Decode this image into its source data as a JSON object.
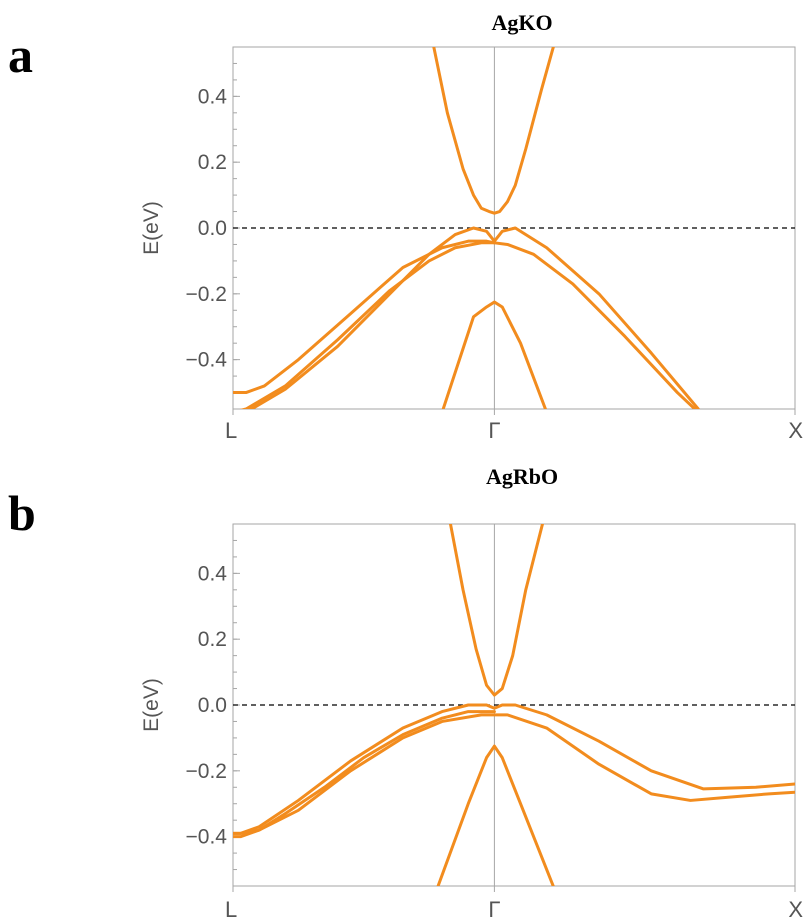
{
  "chart_data": [
    {
      "type": "line",
      "panel_label": "a",
      "title": "AgKO",
      "xlabel": "",
      "ylabel": "E(eV)",
      "ylim": [
        -0.55,
        0.55
      ],
      "yticks": [
        0.4,
        0.2,
        0.0,
        -0.2,
        -0.4
      ],
      "ytick_labels": [
        "0.4",
        "0.2",
        "0.0",
        "−0.2",
        "−0.4"
      ],
      "k_points": [
        {
          "label": "L",
          "k": 0
        },
        {
          "label": "Γ",
          "k": 1
        },
        {
          "label": "X",
          "k": 2.15
        }
      ],
      "fermi_level": 0.0,
      "line_color": "#f28c1e",
      "series": [
        {
          "x": [
            0.75,
            0.82,
            0.88,
            0.92,
            0.95,
            0.98,
            1.0,
            1.02,
            1.05,
            1.08,
            1.12,
            1.18,
            1.25
          ],
          "values": [
            0.62,
            0.35,
            0.18,
            0.1,
            0.06,
            0.05,
            0.045,
            0.05,
            0.08,
            0.13,
            0.24,
            0.42,
            0.62
          ]
        },
        {
          "x": [
            0.0,
            0.05,
            0.2,
            0.4,
            0.6,
            0.75,
            0.85,
            0.92,
            0.97,
            1.0,
            1.03,
            1.08,
            1.2,
            1.4,
            1.6,
            1.78
          ],
          "values": [
            -0.57,
            -0.56,
            -0.49,
            -0.36,
            -0.2,
            -0.08,
            -0.02,
            0.0,
            -0.01,
            -0.04,
            -0.01,
            0.0,
            -0.06,
            -0.2,
            -0.38,
            -0.55
          ]
        },
        {
          "x": [
            0.0,
            0.05,
            0.2,
            0.4,
            0.6,
            0.75,
            0.85,
            0.95,
            1.0,
            1.05,
            1.15,
            1.3,
            1.5,
            1.7,
            1.78
          ],
          "values": [
            -0.56,
            -0.55,
            -0.48,
            -0.34,
            -0.19,
            -0.1,
            -0.06,
            -0.045,
            -0.045,
            -0.05,
            -0.08,
            -0.17,
            -0.33,
            -0.5,
            -0.56
          ]
        },
        {
          "x": [
            0.0,
            0.05,
            0.12,
            0.25,
            0.45,
            0.65,
            0.8,
            0.9,
            0.97,
            1.0
          ],
          "values": [
            -0.5,
            -0.5,
            -0.48,
            -0.4,
            -0.26,
            -0.12,
            -0.06,
            -0.04,
            -0.04,
            -0.045
          ]
        },
        {
          "x": [
            0.8,
            0.92,
            0.97,
            1.0,
            1.03,
            1.1,
            1.2
          ],
          "values": [
            -0.56,
            -0.27,
            -0.24,
            -0.225,
            -0.24,
            -0.35,
            -0.56
          ]
        }
      ]
    },
    {
      "type": "line",
      "panel_label": "b",
      "title": "AgRbO",
      "xlabel": "",
      "ylabel": "E(eV)",
      "ylim": [
        -0.55,
        0.55
      ],
      "yticks": [
        0.4,
        0.2,
        0.0,
        -0.2,
        -0.4
      ],
      "ytick_labels": [
        "0.4",
        "0.2",
        "0.0",
        "−0.2",
        "−0.4"
      ],
      "k_points": [
        {
          "label": "L",
          "k": 0
        },
        {
          "label": "Γ",
          "k": 1
        },
        {
          "label": "X",
          "k": 2.15
        }
      ],
      "fermi_level": 0.0,
      "line_color": "#f28c1e",
      "series": [
        {
          "x": [
            0.82,
            0.88,
            0.93,
            0.97,
            1.0,
            1.03,
            1.07,
            1.12,
            1.2
          ],
          "values": [
            0.6,
            0.35,
            0.17,
            0.06,
            0.03,
            0.05,
            0.15,
            0.35,
            0.6
          ]
        },
        {
          "x": [
            0.0,
            0.03,
            0.1,
            0.25,
            0.45,
            0.65,
            0.8,
            0.9,
            0.97,
            1.0,
            1.03,
            1.08,
            1.2,
            1.4,
            1.6,
            1.8,
            2.0,
            2.15
          ],
          "values": [
            -0.39,
            -0.39,
            -0.37,
            -0.29,
            -0.17,
            -0.07,
            -0.02,
            0.0,
            0.0,
            -0.01,
            0.0,
            0.0,
            -0.03,
            -0.11,
            -0.2,
            -0.255,
            -0.25,
            -0.24
          ]
        },
        {
          "x": [
            0.0,
            0.03,
            0.1,
            0.25,
            0.45,
            0.65,
            0.8,
            0.95,
            1.0,
            1.05,
            1.2,
            1.4,
            1.6,
            1.75,
            1.9,
            2.05,
            2.15
          ],
          "values": [
            -0.4,
            -0.4,
            -0.38,
            -0.32,
            -0.2,
            -0.1,
            -0.05,
            -0.03,
            -0.03,
            -0.03,
            -0.07,
            -0.18,
            -0.27,
            -0.29,
            -0.28,
            -0.27,
            -0.265
          ]
        },
        {
          "x": [
            0.0,
            0.03,
            0.1,
            0.2,
            0.35,
            0.5,
            0.65,
            0.8,
            0.9,
            0.97,
            1.0
          ],
          "values": [
            -0.39,
            -0.39,
            -0.38,
            -0.33,
            -0.25,
            -0.16,
            -0.09,
            -0.04,
            -0.02,
            -0.02,
            -0.02
          ]
        },
        {
          "x": [
            0.78,
            0.9,
            0.97,
            1.0,
            1.03,
            1.1,
            1.23
          ],
          "values": [
            -0.56,
            -0.3,
            -0.16,
            -0.125,
            -0.16,
            -0.3,
            -0.56
          ]
        }
      ]
    }
  ]
}
